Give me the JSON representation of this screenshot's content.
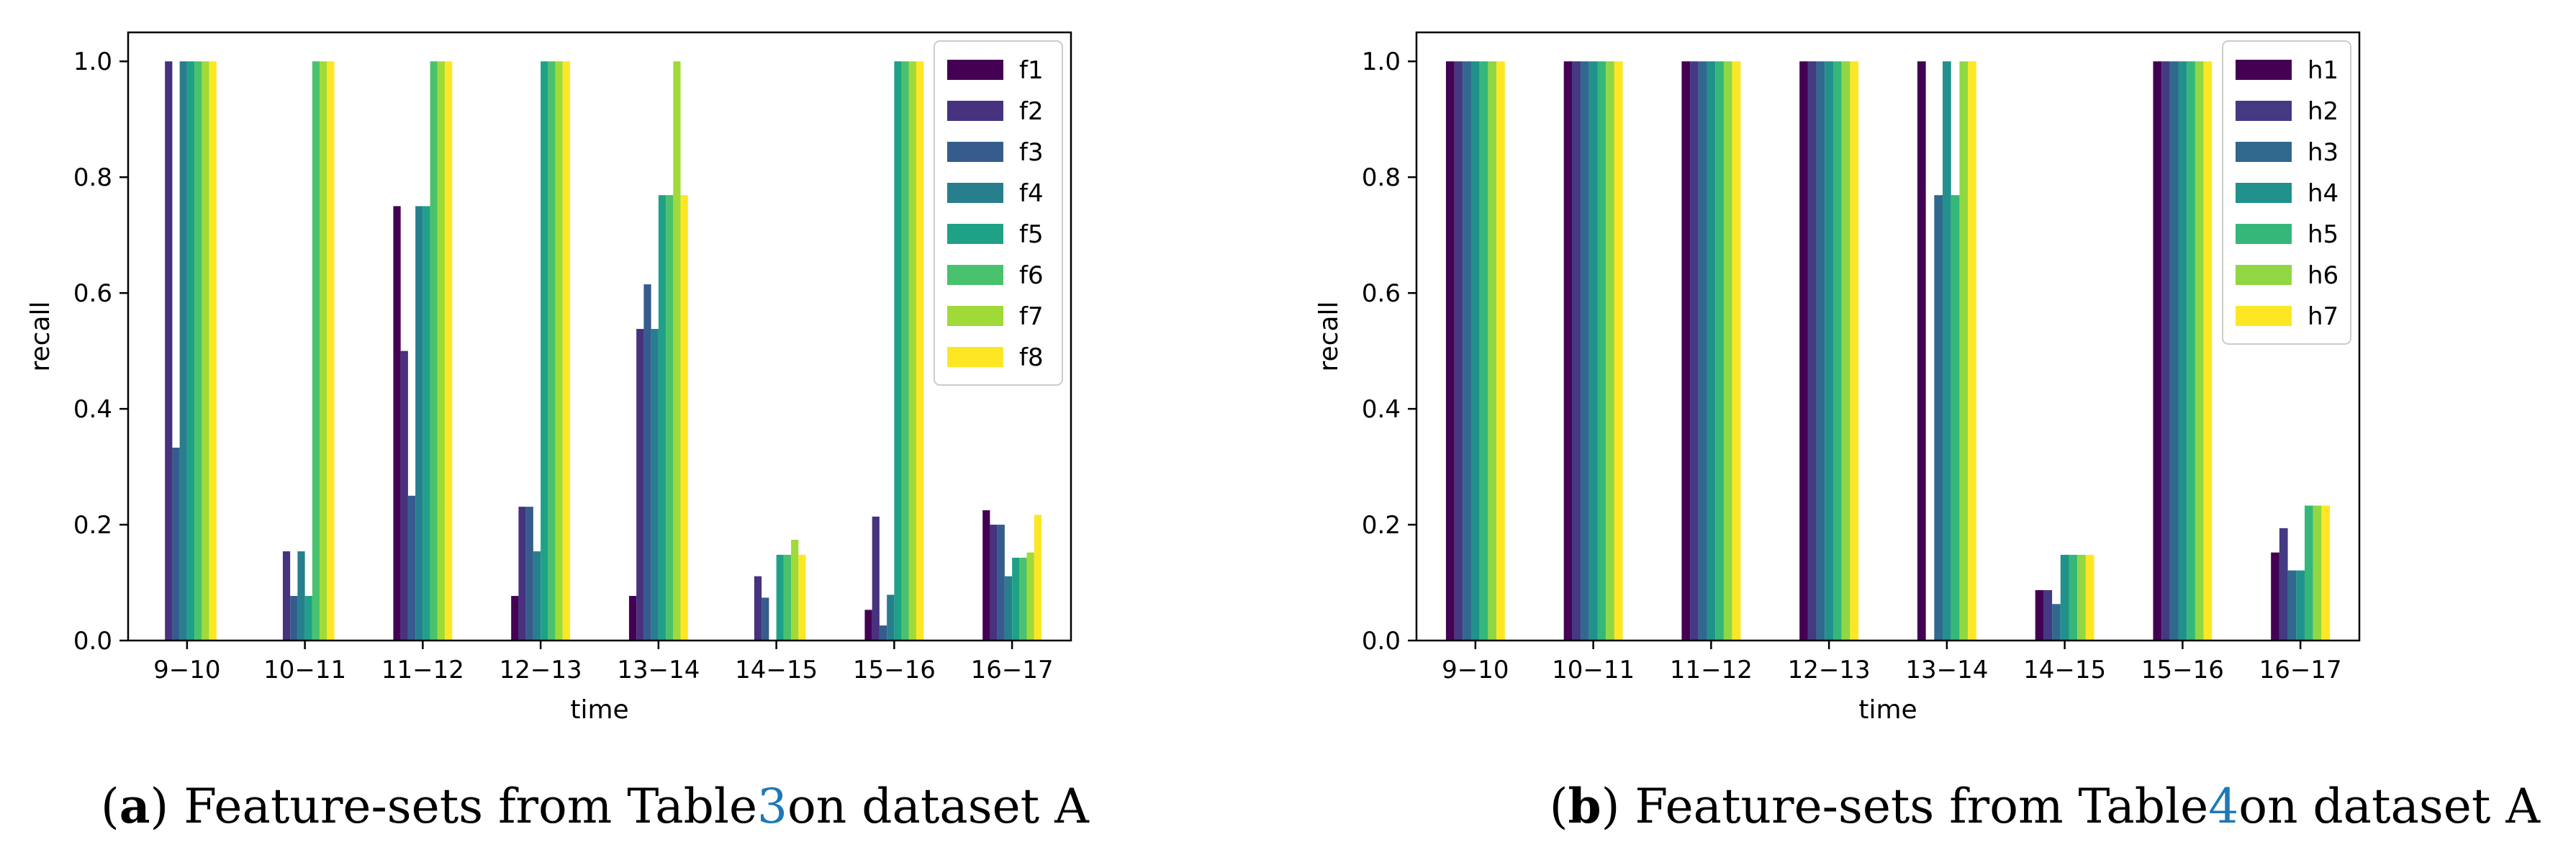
{
  "chart_data": [
    {
      "type": "bar",
      "xlabel": "time",
      "ylabel": "recall",
      "ylim": [
        0,
        1.05
      ],
      "yticks": [
        "0.0",
        "0.2",
        "0.4",
        "0.6",
        "0.8",
        "1.0"
      ],
      "ytick_values": [
        0,
        0.2,
        0.4,
        0.6,
        0.8,
        1.0
      ],
      "categories": [
        "9−10",
        "10−11",
        "11−12",
        "12−13",
        "13−14",
        "14−15",
        "15−16",
        "16−17"
      ],
      "legend_position": "top-right",
      "series": [
        {
          "name": "f1",
          "color": "#440154",
          "values": [
            0,
            0,
            0.75,
            0.077,
            0.077,
            0,
            0.053,
            0.225
          ]
        },
        {
          "name": "f2",
          "color": "#46327e",
          "values": [
            1.0,
            0.154,
            0.5,
            0.231,
            0.538,
            0.111,
            0.214,
            0.2
          ]
        },
        {
          "name": "f3",
          "color": "#365c8d",
          "values": [
            0.333,
            0.077,
            0.25,
            0.231,
            0.615,
            0.074,
            0.026,
            0.2
          ]
        },
        {
          "name": "f4",
          "color": "#277f8e",
          "values": [
            1.0,
            0.154,
            0.75,
            0.154,
            0.538,
            0,
            0.079,
            0.111
          ]
        },
        {
          "name": "f5",
          "color": "#1fa187",
          "values": [
            1.0,
            0.077,
            0.75,
            1.0,
            0.769,
            0.148,
            1.0,
            0.143
          ]
        },
        {
          "name": "f6",
          "color": "#4ac16d",
          "values": [
            1.0,
            1.0,
            1.0,
            1.0,
            0.769,
            0.148,
            1.0,
            0.143
          ]
        },
        {
          "name": "f7",
          "color": "#a0da39",
          "values": [
            1.0,
            1.0,
            1.0,
            1.0,
            1.0,
            0.174,
            1.0,
            0.152
          ]
        },
        {
          "name": "f8",
          "color": "#fde725",
          "values": [
            1.0,
            1.0,
            1.0,
            1.0,
            0.769,
            0.148,
            1.0,
            0.217
          ]
        }
      ]
    },
    {
      "type": "bar",
      "xlabel": "time",
      "ylabel": "recall",
      "ylim": [
        0,
        1.05
      ],
      "yticks": [
        "0.0",
        "0.2",
        "0.4",
        "0.6",
        "0.8",
        "1.0"
      ],
      "ytick_values": [
        0,
        0.2,
        0.4,
        0.6,
        0.8,
        1.0
      ],
      "categories": [
        "9−10",
        "10−11",
        "11−12",
        "12−13",
        "13−14",
        "14−15",
        "15−16",
        "16−17"
      ],
      "legend_position": "top-right",
      "series": [
        {
          "name": "h1",
          "color": "#440154",
          "values": [
            1.0,
            1.0,
            1.0,
            1.0,
            1.0,
            0.087,
            1.0,
            0.152
          ]
        },
        {
          "name": "h2",
          "color": "#443983",
          "values": [
            1.0,
            1.0,
            1.0,
            1.0,
            0,
            0.087,
            1.0,
            0.194
          ]
        },
        {
          "name": "h3",
          "color": "#31688e",
          "values": [
            1.0,
            1.0,
            1.0,
            1.0,
            0.769,
            0.063,
            1.0,
            0.121
          ]
        },
        {
          "name": "h4",
          "color": "#21918c",
          "values": [
            1.0,
            1.0,
            1.0,
            1.0,
            1.0,
            0.148,
            1.0,
            0.121
          ]
        },
        {
          "name": "h5",
          "color": "#35b779",
          "values": [
            1.0,
            1.0,
            1.0,
            1.0,
            0.769,
            0.148,
            1.0,
            0.233
          ]
        },
        {
          "name": "h6",
          "color": "#90d743",
          "values": [
            1.0,
            1.0,
            1.0,
            1.0,
            1.0,
            0.148,
            1.0,
            0.233
          ]
        },
        {
          "name": "h7",
          "color": "#fde725",
          "values": [
            1.0,
            1.0,
            1.0,
            1.0,
            1.0,
            0.148,
            1.0,
            0.233
          ]
        }
      ]
    }
  ],
  "captions": [
    {
      "label": "a",
      "text": "Feature-sets from Table ",
      "ref": "3",
      "suffix": " on dataset A"
    },
    {
      "label": "b",
      "text": "Feature-sets from Table ",
      "ref": "4",
      "suffix": " on dataset A"
    }
  ]
}
